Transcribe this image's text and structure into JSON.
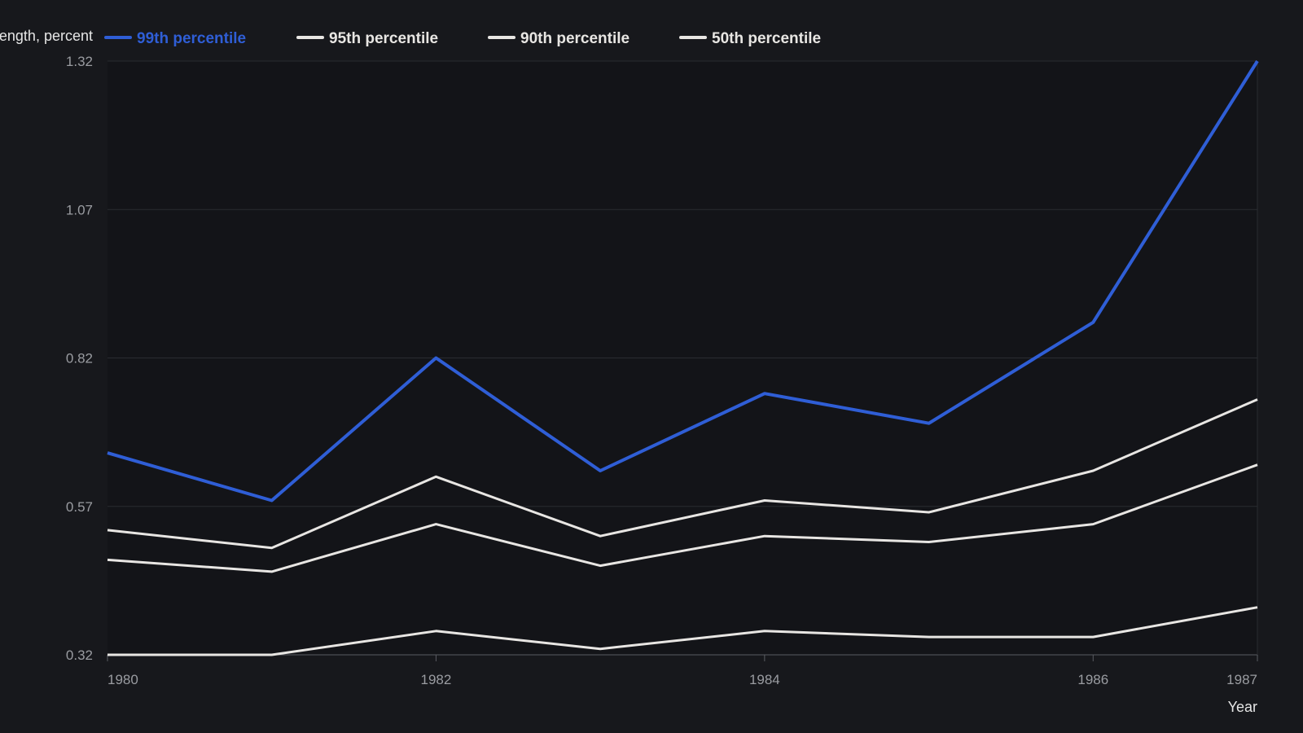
{
  "chart_data": {
    "type": "line",
    "ylabel": "Length, percent",
    "xlabel": "Year",
    "x": [
      1980,
      1981,
      1982,
      1983,
      1984,
      1985,
      1986,
      1987
    ],
    "x_tick_labels": [
      "1980",
      "1982",
      "1984",
      "1986",
      "1987"
    ],
    "y_tick_labels": [
      "0.32",
      "0.57",
      "0.82",
      "1.07",
      "1.32"
    ],
    "ylim": [
      0.32,
      1.32
    ],
    "grid": true,
    "legend_position": "top",
    "series": [
      {
        "name": "99th percentile",
        "color": "#2f5ed6",
        "values": [
          0.66,
          0.58,
          0.82,
          0.63,
          0.76,
          0.71,
          0.88,
          1.32
        ]
      },
      {
        "name": "95th percentile",
        "color": "#e8e6e3",
        "values": [
          0.53,
          0.5,
          0.62,
          0.52,
          0.58,
          0.56,
          0.63,
          0.75
        ]
      },
      {
        "name": "90th percentile",
        "color": "#e8e6e3",
        "values": [
          0.48,
          0.46,
          0.54,
          0.47,
          0.52,
          0.51,
          0.54,
          0.64
        ]
      },
      {
        "name": "50th percentile",
        "color": "#e8e6e3",
        "values": [
          0.32,
          0.32,
          0.36,
          0.33,
          0.36,
          0.35,
          0.35,
          0.4
        ]
      }
    ]
  }
}
